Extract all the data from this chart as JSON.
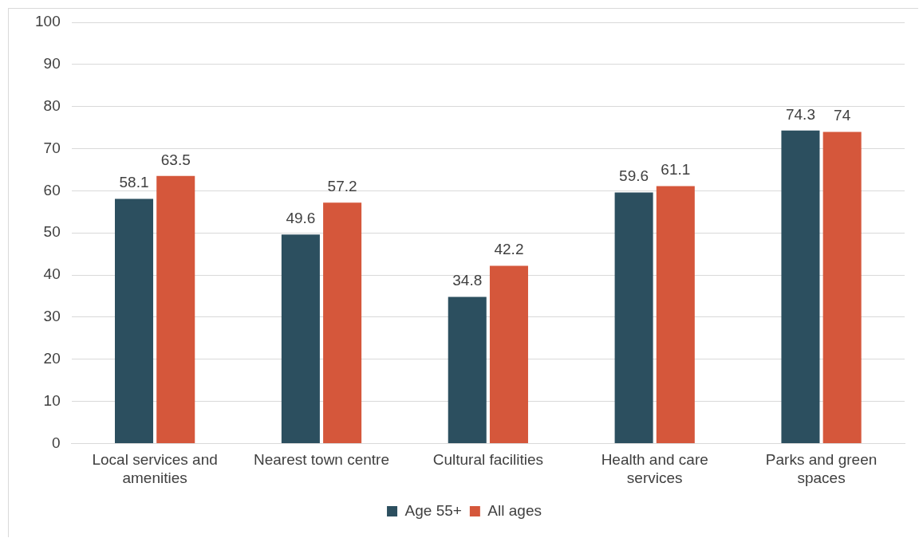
{
  "chart_data": {
    "type": "bar",
    "categories": [
      "Local services and amenities",
      "Nearest town centre",
      "Cultural facilities",
      "Health and care services",
      "Parks and green spaces"
    ],
    "series": [
      {
        "name": "Age 55+",
        "color": "#2c4f5f",
        "values": [
          58.1,
          49.6,
          34.8,
          59.6,
          74.3
        ]
      },
      {
        "name": "All ages",
        "color": "#d5573b",
        "values": [
          63.5,
          57.2,
          42.2,
          61.1,
          74
        ]
      }
    ],
    "ylim": [
      0,
      100
    ],
    "yticks": [
      0,
      10,
      20,
      30,
      40,
      50,
      60,
      70,
      80,
      90,
      100
    ],
    "grid": "y",
    "legend": "bottom",
    "data_labels": true
  }
}
